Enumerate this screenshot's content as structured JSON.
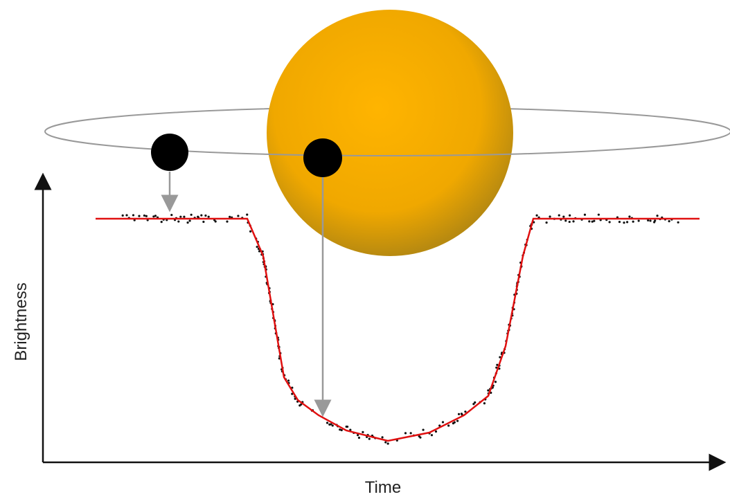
{
  "axes": {
    "x_label": "Time",
    "y_label": "Brightness"
  }
}
